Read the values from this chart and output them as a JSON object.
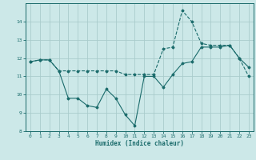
{
  "xlabel": "Humidex (Indice chaleur)",
  "ylabel": "",
  "bg_color": "#cce8e8",
  "grid_color": "#aacccc",
  "line_color": "#1a6b6b",
  "xlim": [
    -0.5,
    23.5
  ],
  "ylim": [
    8,
    15
  ],
  "yticks": [
    8,
    9,
    10,
    11,
    12,
    13,
    14
  ],
  "xticks": [
    0,
    1,
    2,
    3,
    4,
    5,
    6,
    7,
    8,
    9,
    10,
    11,
    12,
    13,
    14,
    15,
    16,
    17,
    18,
    19,
    20,
    21,
    22,
    23
  ],
  "line1_x": [
    0,
    1,
    2,
    3,
    4,
    5,
    6,
    7,
    8,
    9,
    10,
    11,
    12,
    13,
    14,
    15,
    16,
    17,
    18,
    19,
    20,
    21,
    22,
    23
  ],
  "line1_y": [
    11.8,
    11.9,
    11.9,
    11.3,
    9.8,
    9.8,
    9.4,
    9.3,
    10.3,
    9.8,
    8.9,
    8.3,
    11.0,
    11.0,
    10.4,
    11.1,
    11.7,
    11.8,
    12.6,
    12.6,
    12.6,
    12.7,
    12.0,
    11.5
  ],
  "line2_x": [
    0,
    1,
    2,
    3,
    4,
    5,
    6,
    7,
    8,
    9,
    10,
    11,
    12,
    13,
    14,
    15,
    16,
    17,
    18,
    19,
    20,
    21,
    22,
    23
  ],
  "line2_y": [
    11.8,
    11.9,
    11.9,
    11.3,
    11.3,
    11.3,
    11.3,
    11.3,
    11.3,
    11.3,
    11.1,
    11.1,
    11.1,
    11.1,
    12.5,
    12.6,
    14.6,
    14.0,
    12.8,
    12.7,
    12.7,
    12.7,
    12.0,
    11.0
  ]
}
